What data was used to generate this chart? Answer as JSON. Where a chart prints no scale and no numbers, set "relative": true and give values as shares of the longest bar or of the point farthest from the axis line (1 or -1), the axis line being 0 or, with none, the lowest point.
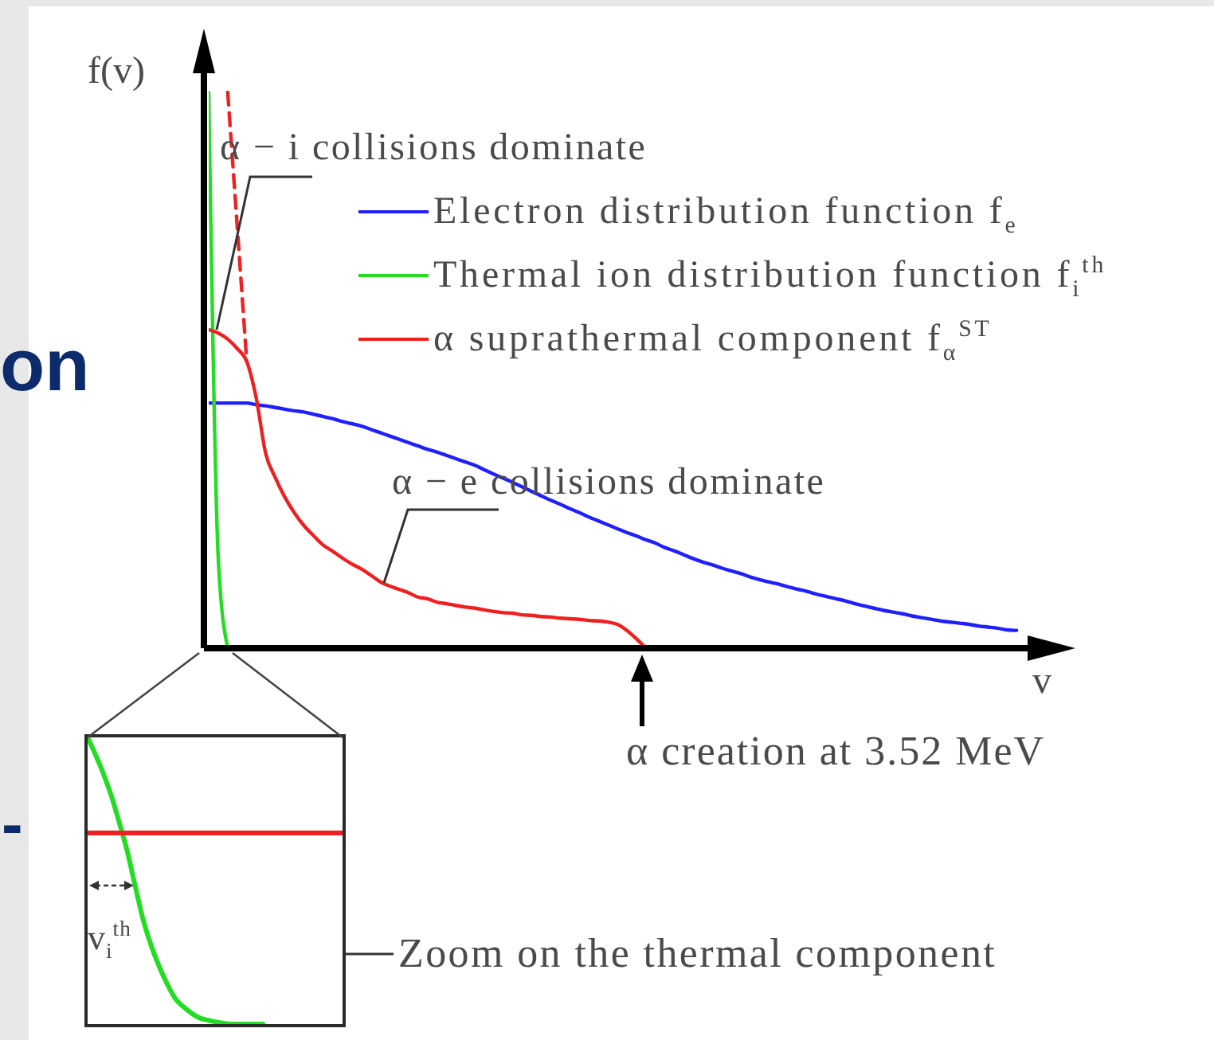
{
  "chart_data": [
    {
      "type": "line",
      "xlabel": "v",
      "ylabel": "f(v)",
      "relative": true,
      "legend": "top right",
      "marker": "none",
      "categories": [
        null,
        null,
        null,
        null,
        null,
        null,
        null,
        null,
        null,
        null,
        null,
        null,
        null,
        null,
        null,
        null,
        null,
        null,
        null,
        null,
        null,
        null,
        null,
        null,
        null,
        null,
        null,
        null,
        null,
        null,
        null,
        null,
        null,
        null,
        null,
        null,
        null,
        null,
        null,
        null,
        null,
        null,
        null,
        null,
        null,
        null,
        null,
        null,
        null,
        null,
        null,
        null,
        null,
        null,
        null,
        null,
        null,
        null,
        null,
        null,
        null,
        null,
        null,
        null,
        null,
        null,
        null,
        null,
        null,
        null,
        null,
        null,
        null,
        null,
        null,
        null,
        null,
        null,
        null,
        null,
        null,
        null,
        null,
        null,
        null,
        null,
        null,
        null
      ],
      "series": [
        {
          "name": "Electron distribution function f$_{e}$",
          "color": "#2020ff",
          "values": [
            0.441,
            0.441,
            0.441,
            0.441,
            0.441,
            0.438,
            0.436,
            0.433,
            0.43,
            0.427,
            0.425,
            0.421,
            0.417,
            0.413,
            0.408,
            0.404,
            0.4,
            0.394,
            0.388,
            0.382,
            0.376,
            0.37,
            0.364,
            0.358,
            0.353,
            0.347,
            0.341,
            0.335,
            0.329,
            0.321,
            0.313,
            0.306,
            0.298,
            0.29,
            0.282,
            0.274,
            0.266,
            0.259,
            0.251,
            0.244,
            0.236,
            0.229,
            0.222,
            0.215,
            0.208,
            0.202,
            0.195,
            0.189,
            0.181,
            0.175,
            0.168,
            0.161,
            0.155,
            0.15,
            0.144,
            0.139,
            0.134,
            0.128,
            0.123,
            0.119,
            0.115,
            0.11,
            0.106,
            0.102,
            0.097,
            0.093,
            0.089,
            0.085,
            0.08,
            0.076,
            0.072,
            0.068,
            0.065,
            0.062,
            0.058,
            0.055,
            0.052,
            0.049,
            0.047,
            0.045,
            0.043,
            0.04,
            0.038,
            0.036,
            0.033,
            0.032,
            null,
            null
          ]
        },
        {
          "name": "Thermal ion distribution function f$_{i}$$^{th}$",
          "color": "#22dd22",
          "values": [
            1,
            0.163,
            0,
            null,
            null,
            null,
            null,
            null,
            null,
            null,
            null,
            null,
            null,
            null,
            null,
            null,
            null,
            null,
            null,
            null,
            null,
            null,
            null,
            null,
            null,
            null,
            null,
            null,
            null,
            null,
            null,
            null,
            null,
            null,
            null,
            null,
            null,
            null,
            null,
            null,
            null,
            null,
            null,
            null,
            null,
            null,
            null,
            null,
            null,
            null,
            null,
            null,
            null,
            null,
            null,
            null,
            null,
            null,
            null,
            null,
            null,
            null,
            null,
            null,
            null,
            null,
            null,
            null,
            null,
            null,
            null,
            null,
            null,
            null,
            null,
            null,
            null,
            null,
            null,
            null,
            null,
            null,
            null,
            null,
            null,
            null,
            null,
            null
          ]
        },
        {
          "name": "α suprathermal component f$_{α}$$^{ST}$",
          "color": "#ee2020",
          "values": [
            0.573,
            0.567,
            0.556,
            0.539,
            0.516,
            0.45,
            0.35,
            0.307,
            0.272,
            0.244,
            0.221,
            0.203,
            0.186,
            0.175,
            0.163,
            0.152,
            0.143,
            0.132,
            0.12,
            0.112,
            0.106,
            0.1,
            0.092,
            0.089,
            0.083,
            0.08,
            0.077,
            0.074,
            0.072,
            0.069,
            0.066,
            0.064,
            0.063,
            0.06,
            0.059,
            0.057,
            0.056,
            0.054,
            0.053,
            0.052,
            0.05,
            0.049,
            0.047,
            0.043,
            0.032,
            0.017,
            0,
            null,
            null,
            null,
            null,
            null,
            null,
            null,
            null,
            null,
            null,
            null,
            null,
            null,
            null,
            null,
            null,
            null,
            null,
            null,
            null,
            null,
            null,
            null,
            null,
            null,
            null,
            null,
            null,
            null,
            null,
            null,
            null,
            null,
            null,
            null,
            null,
            null,
            null,
            null,
            null,
            null
          ]
        },
        {
          "color": "#ee2020",
          "line_style": "dashed",
          "values": [
            null,
            null,
            1,
            0.759,
            0.516,
            null,
            null,
            null,
            null,
            null,
            null,
            null,
            null,
            null,
            null,
            null,
            null,
            null,
            null,
            null,
            null,
            null,
            null,
            null,
            null,
            null,
            null,
            null,
            null,
            null,
            null,
            null,
            null,
            null,
            null,
            null,
            null,
            null,
            null,
            null,
            null,
            null,
            null,
            null,
            null,
            null,
            null,
            null,
            null,
            null,
            null,
            null,
            null,
            null,
            null,
            null,
            null,
            null,
            null,
            null,
            null,
            null,
            null,
            null,
            null,
            null,
            null,
            null,
            null,
            null,
            null,
            null,
            null,
            null,
            null,
            null,
            null,
            null,
            null,
            null,
            null,
            null,
            null,
            null,
            null,
            null,
            null,
            null
          ]
        }
      ],
      "annotations": [
        "α − i collisions dominate",
        "α − e collisions dominate",
        "α creation at 3.52 MeV",
        "on",
        "-"
      ]
    },
    {
      "type": "line",
      "relative": true,
      "marker": "none",
      "categories": [
        null,
        null,
        null,
        null,
        null,
        null,
        null,
        null,
        null,
        null,
        null,
        null,
        null,
        null,
        null,
        null,
        null,
        null,
        null,
        null,
        null,
        null,
        null,
        null,
        null,
        null,
        null,
        null,
        null,
        null,
        null,
        null,
        null
      ],
      "series": [
        {
          "color": "#22dd22",
          "values": [
            1,
            0.939,
            0.872,
            0.794,
            0.7,
            0.6,
            0.478,
            0.361,
            0.272,
            0.2,
            0.139,
            0.089,
            0.061,
            0.039,
            0.022,
            0.014,
            0.008,
            0.003,
            0,
            0,
            0,
            0,
            0,
            null,
            null,
            null,
            null,
            null,
            null,
            null,
            null,
            null,
            null
          ]
        },
        {
          "color": "#ee2020",
          "values": [
            0.667,
            0.667,
            0.667,
            0.667,
            0.667,
            0.667,
            0.667,
            0.667,
            0.667,
            0.667,
            0.667,
            0.667,
            0.667,
            0.667,
            0.667,
            0.667,
            0.667,
            0.667,
            0.667,
            0.667,
            0.667,
            0.667,
            0.667,
            0.667,
            0.667,
            0.667,
            0.667,
            0.667,
            0.667,
            0.667,
            0.667,
            0.667,
            0.667
          ]
        }
      ],
      "annotations": [
        "v$_{i}$$^{th}$",
        "Zoom on the thermal component"
      ]
    }
  ]
}
